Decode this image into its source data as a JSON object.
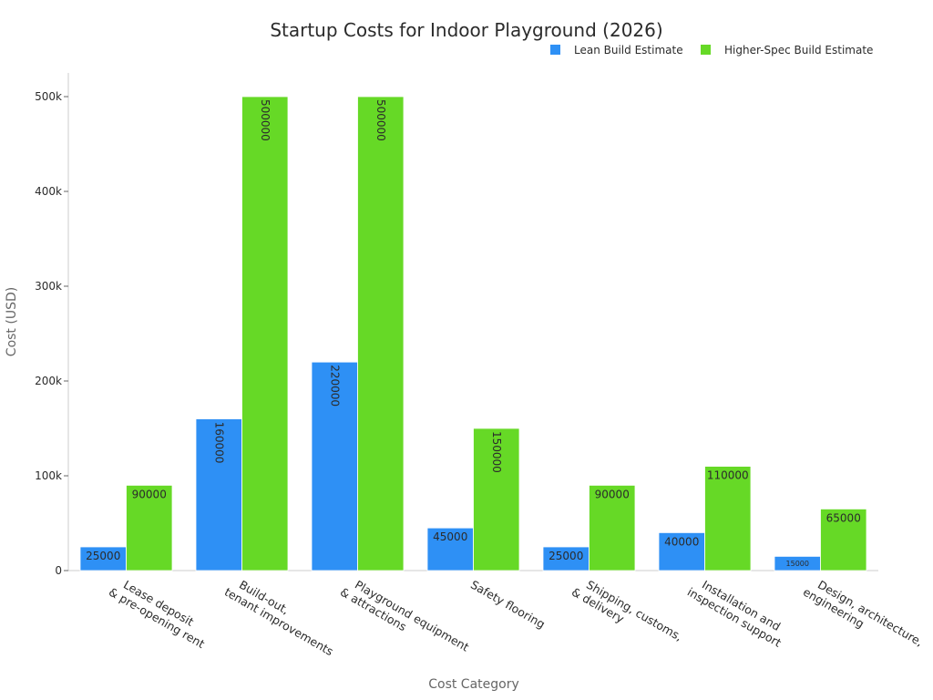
{
  "chart_data": {
    "type": "bar",
    "title": "Startup Costs for Indoor Playground (2026)",
    "xlabel": "Cost Category",
    "ylabel": "Cost (USD)",
    "ylim": [
      0,
      525000
    ],
    "y_ticks": [
      0,
      100000,
      200000,
      300000,
      400000,
      500000
    ],
    "y_tick_labels": [
      "0",
      "100k",
      "200k",
      "300k",
      "400k",
      "500k"
    ],
    "grid": false,
    "legend_position": "top-right",
    "categories": [
      [
        "Lease deposit",
        "& pre-opening rent"
      ],
      [
        "Build-out,",
        "tenant improvements"
      ],
      [
        "Playground equipment",
        "& attractions"
      ],
      [
        "Safety flooring"
      ],
      [
        "Shipping, customs,",
        "& delivery"
      ],
      [
        "Installation and",
        "inspection support"
      ],
      [
        "Design, architecture,",
        "engineering"
      ]
    ],
    "series": [
      {
        "name": "Lean Build Estimate",
        "color": "#2e90f5",
        "values": [
          25000,
          160000,
          220000,
          45000,
          25000,
          40000,
          15000
        ]
      },
      {
        "name": "Higher-Spec Build Estimate",
        "color": "#66d926",
        "values": [
          90000,
          500000,
          500000,
          150000,
          90000,
          110000,
          65000
        ]
      }
    ]
  }
}
